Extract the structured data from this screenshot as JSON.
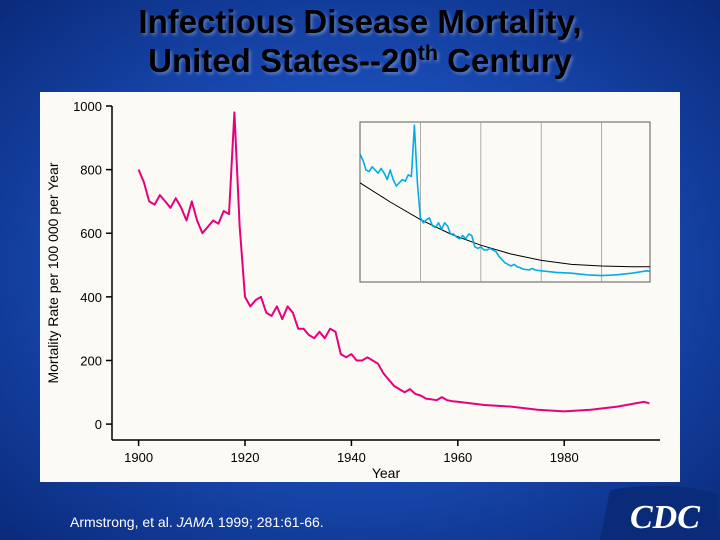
{
  "title_line1": "Infectious Disease Mortality,",
  "title_line2_pre": "United States--20",
  "title_line2_sup": "th",
  "title_line2_post": " Century",
  "citation_pre": "Armstrong, et al. ",
  "citation_journal": "JAMA",
  "citation_post": " 1999; 281:61-66.",
  "logo_text": "CDC",
  "main_chart": {
    "type": "line",
    "xlabel": "Year",
    "ylabel": "Mortality Rate per 100 000 per Year",
    "label_fontsize": 14,
    "tick_fontsize": 13,
    "background_color": "#fbfaf5",
    "plot_bg_color": "#fbfaf5",
    "axis_color": "#000000",
    "xlim": [
      1895,
      1998
    ],
    "ylim": [
      -50,
      1000
    ],
    "xticks": [
      1900,
      1920,
      1940,
      1960,
      1980
    ],
    "yticks": [
      0,
      200,
      400,
      600,
      800,
      1000
    ],
    "line_color": "#e6007e",
    "line_width": 2,
    "years": [
      1900,
      1901,
      1902,
      1903,
      1904,
      1905,
      1906,
      1907,
      1908,
      1909,
      1910,
      1911,
      1912,
      1913,
      1914,
      1915,
      1916,
      1917,
      1918,
      1919,
      1920,
      1921,
      1922,
      1923,
      1924,
      1925,
      1926,
      1927,
      1928,
      1929,
      1930,
      1931,
      1932,
      1933,
      1934,
      1935,
      1936,
      1937,
      1938,
      1939,
      1940,
      1941,
      1942,
      1943,
      1944,
      1945,
      1946,
      1947,
      1948,
      1949,
      1950,
      1951,
      1952,
      1953,
      1954,
      1955,
      1956,
      1957,
      1958,
      1959,
      1960,
      1965,
      1970,
      1975,
      1980,
      1985,
      1990,
      1995,
      1996
    ],
    "values": [
      800,
      760,
      700,
      690,
      720,
      700,
      680,
      710,
      680,
      640,
      700,
      640,
      600,
      620,
      640,
      630,
      670,
      660,
      980,
      620,
      400,
      370,
      390,
      400,
      350,
      340,
      370,
      330,
      370,
      350,
      300,
      300,
      280,
      270,
      290,
      270,
      300,
      290,
      220,
      210,
      220,
      200,
      200,
      210,
      200,
      190,
      160,
      140,
      120,
      110,
      100,
      110,
      95,
      90,
      80,
      78,
      75,
      85,
      75,
      72,
      70,
      60,
      55,
      45,
      40,
      45,
      55,
      70,
      65
    ]
  },
  "inset_chart": {
    "type": "line",
    "background_color": "#fbfaf5",
    "border_color": "#5a5a5a",
    "grid_color": "#9a9a9a",
    "xlim": [
      1900,
      1996
    ],
    "ylim": [
      0,
      1000
    ],
    "grid_x": [
      1920,
      1940,
      1960,
      1980
    ],
    "main_line_color": "#00aee6",
    "main_line_width": 1.6,
    "years": [
      1900,
      1901,
      1902,
      1903,
      1904,
      1905,
      1906,
      1907,
      1908,
      1909,
      1910,
      1911,
      1912,
      1913,
      1914,
      1915,
      1916,
      1917,
      1918,
      1919,
      1920,
      1921,
      1922,
      1923,
      1924,
      1925,
      1926,
      1927,
      1928,
      1929,
      1930,
      1931,
      1932,
      1933,
      1934,
      1935,
      1936,
      1937,
      1938,
      1939,
      1940,
      1941,
      1942,
      1943,
      1944,
      1945,
      1946,
      1947,
      1948,
      1949,
      1950,
      1951,
      1952,
      1953,
      1954,
      1955,
      1956,
      1957,
      1958,
      1959,
      1960,
      1965,
      1970,
      1975,
      1980,
      1985,
      1990,
      1995,
      1996
    ],
    "values": [
      800,
      760,
      700,
      690,
      720,
      700,
      680,
      710,
      680,
      640,
      700,
      640,
      600,
      620,
      640,
      630,
      670,
      660,
      980,
      620,
      400,
      370,
      390,
      400,
      350,
      340,
      370,
      330,
      370,
      350,
      300,
      300,
      280,
      270,
      290,
      270,
      300,
      290,
      220,
      210,
      220,
      200,
      200,
      210,
      200,
      190,
      160,
      140,
      120,
      110,
      100,
      110,
      95,
      90,
      80,
      78,
      75,
      85,
      75,
      72,
      70,
      60,
      55,
      45,
      40,
      45,
      55,
      70,
      65
    ],
    "trend_line_color": "#000000",
    "trend_line_width": 1,
    "trend_years": [
      1900,
      1910,
      1920,
      1930,
      1940,
      1950,
      1960,
      1970,
      1980,
      1990,
      1996
    ],
    "trend_values": [
      620,
      500,
      390,
      300,
      230,
      175,
      135,
      110,
      100,
      95,
      95
    ]
  }
}
